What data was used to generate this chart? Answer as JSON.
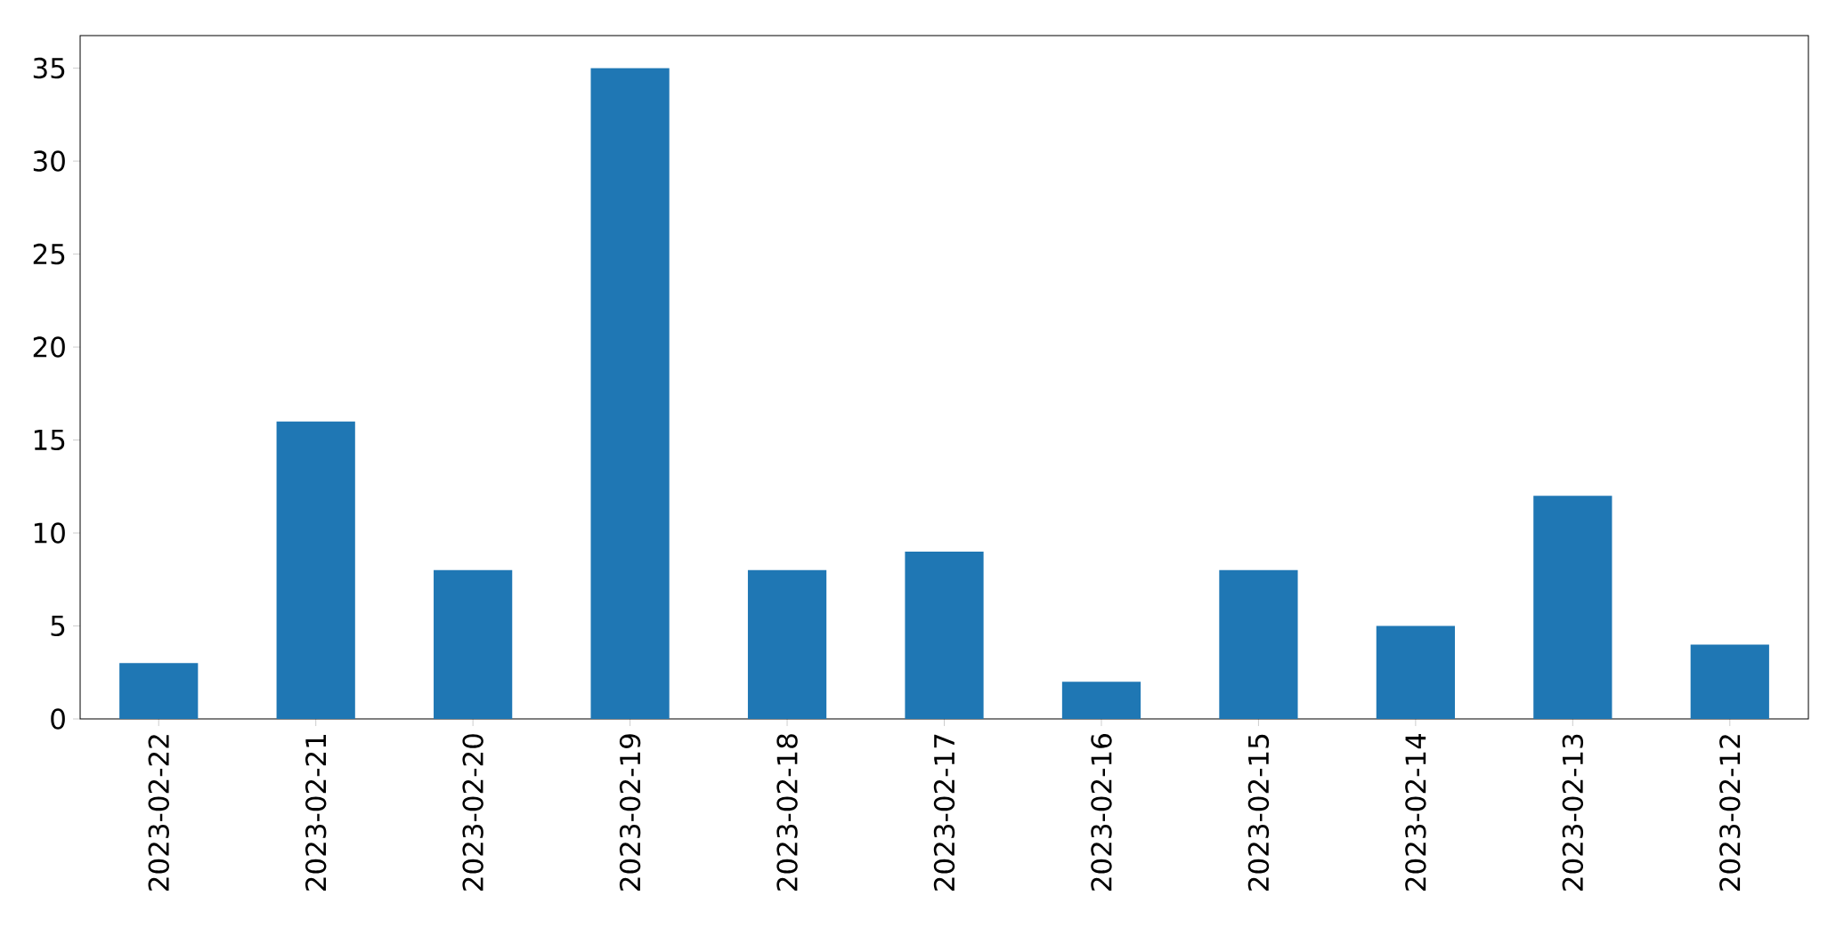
{
  "chart_data": {
    "type": "bar",
    "categories": [
      "2023-02-22",
      "2023-02-21",
      "2023-02-20",
      "2023-02-19",
      "2023-02-18",
      "2023-02-17",
      "2023-02-16",
      "2023-02-15",
      "2023-02-14",
      "2023-02-13",
      "2023-02-12"
    ],
    "values": [
      3,
      16,
      8,
      35,
      8,
      9,
      2,
      8,
      5,
      12,
      4
    ],
    "color": "#1f77b4",
    "ylim": [
      0,
      36.75
    ],
    "yticks": [
      0,
      5,
      10,
      15,
      20,
      25,
      30,
      35
    ]
  }
}
